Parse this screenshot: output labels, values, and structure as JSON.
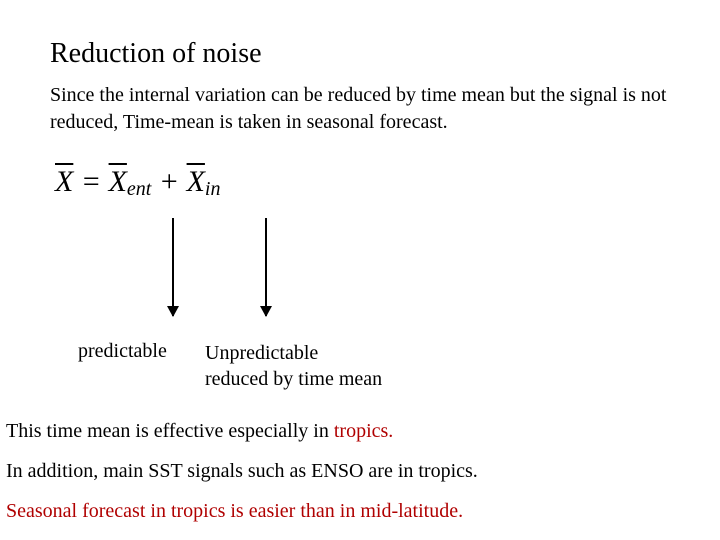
{
  "title": "Reduction of noise",
  "intro": "Since the internal variation can be reduced by time mean but  the signal is not reduced, Time-mean is taken in seasonal forecast.",
  "formula": {
    "lhs_bar": "X",
    "eq": " = ",
    "r1_bar": "X",
    "r1_sub": "ent",
    "plus": " + ",
    "r2_bar": "X",
    "r2_sub": "in"
  },
  "labels": {
    "predictable": "predictable",
    "unpred_line1": "Unpredictable",
    "unpred_line2": "reduced by time mean"
  },
  "p1_a": "This time mean is  effective especially in ",
  "p1_b": "tropics.",
  "p2": "In addition, main SST signals such as ENSO are in tropics.",
  "p3": "Seasonal forecast in tropics is easier than in mid-latitude.",
  "colors": {
    "text": "#000000",
    "accent": "#b00000",
    "background": "#ffffff"
  }
}
